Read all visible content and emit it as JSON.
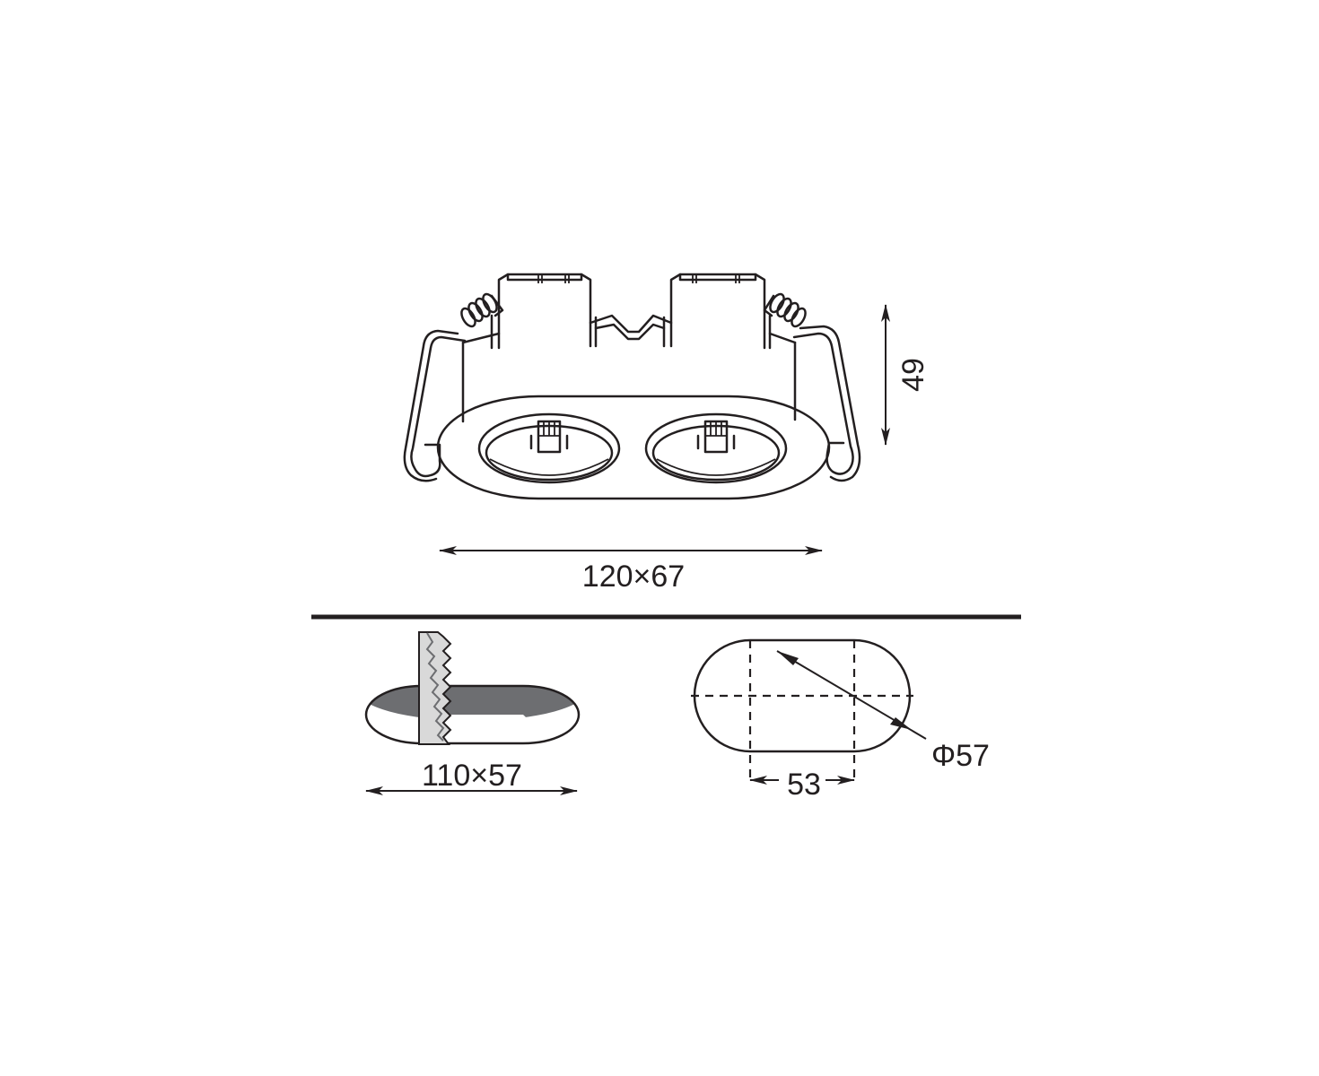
{
  "dimensions": {
    "height_label": "49",
    "trim_size_label": "120×67",
    "cutout_size_label": "110×57",
    "cutout_length_label": "53",
    "cutout_diameter_label": "Φ57"
  },
  "colors": {
    "line": "#231f20",
    "cutout_shade": "#6d6e71",
    "blade_fill": "#d9d9d9",
    "background": "#ffffff"
  },
  "icons": {
    "saw_blade": "saw-blade-icon"
  }
}
